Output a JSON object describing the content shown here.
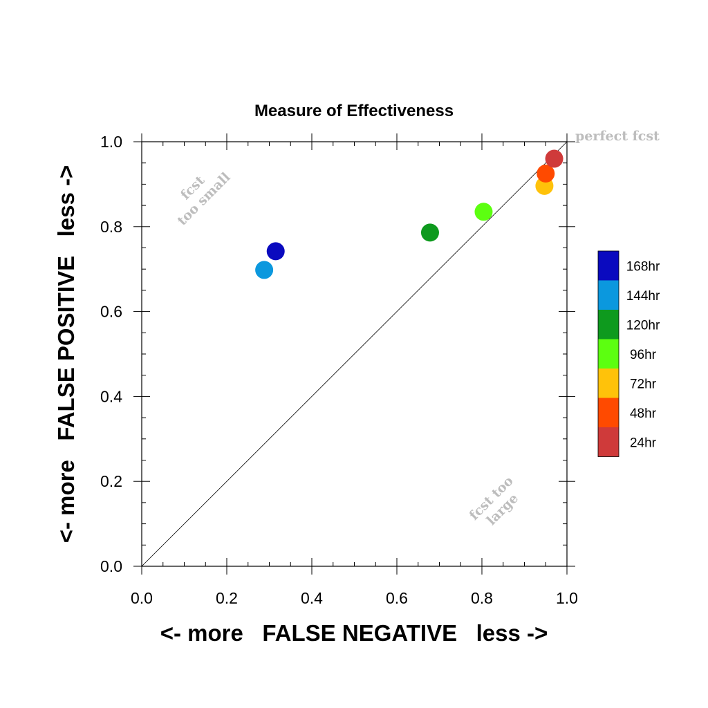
{
  "chart_data": {
    "type": "scatter",
    "title": "Measure of Effectiveness",
    "xlabel": "<- more   FALSE NEGATIVE   less ->",
    "ylabel": "<- more   FALSE POSITIVE   less ->",
    "xlim": [
      0.0,
      1.0
    ],
    "ylim": [
      0.0,
      1.0
    ],
    "x_ticks": [
      "0.0",
      "0.2",
      "0.4",
      "0.6",
      "0.8",
      "1.0"
    ],
    "y_ticks": [
      "0.0",
      "0.2",
      "0.4",
      "0.6",
      "0.8",
      "1.0"
    ],
    "grid": false,
    "diagonal_line": true,
    "annotations": {
      "perfect": "perfect fcst",
      "too_small_line1": "fcst",
      "too_small_line2": "too small",
      "too_large_line1": "fcst too",
      "too_large_line2": "large"
    },
    "series": [
      {
        "name": "168hr",
        "color": "#0a0abf",
        "x": [
          0.315
        ],
        "y": [
          0.742
        ]
      },
      {
        "name": "144hr",
        "color": "#0b98de",
        "x": [
          0.288
        ],
        "y": [
          0.698
        ]
      },
      {
        "name": "120hr",
        "color": "#0e9a1e",
        "x": [
          0.678
        ],
        "y": [
          0.786
        ]
      },
      {
        "name": "96hr",
        "color": "#5cff10",
        "x": [
          0.804
        ],
        "y": [
          0.835
        ]
      },
      {
        "name": "72hr",
        "color": "#ffc20a",
        "x": [
          0.947
        ],
        "y": [
          0.896
        ]
      },
      {
        "name": "48hr",
        "color": "#ff4a00",
        "x": [
          0.95
        ],
        "y": [
          0.925
        ]
      },
      {
        "name": "24hr",
        "color": "#cf3a3a",
        "x": [
          0.97
        ],
        "y": [
          0.96
        ]
      }
    ],
    "legend_position": "right"
  }
}
